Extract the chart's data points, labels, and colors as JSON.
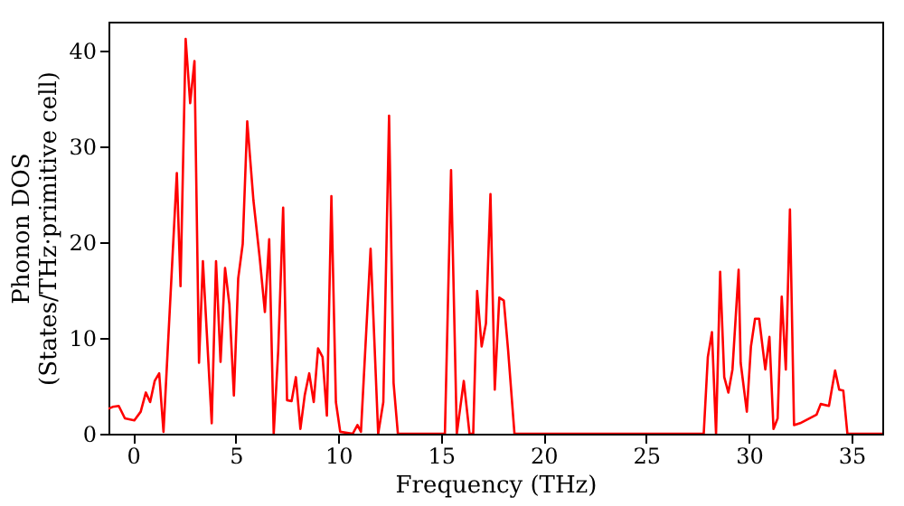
{
  "chart_data": {
    "type": "line",
    "xlabel": "Frequency (THz)",
    "ylabel": "Phonon DOS\n(States/THz·primitive cell)",
    "xlim": [
      -1.2,
      36.5
    ],
    "ylim": [
      0,
      43
    ],
    "xticks": [
      0,
      5,
      10,
      15,
      20,
      25,
      30,
      35
    ],
    "yticks": [
      0,
      10,
      20,
      30,
      40
    ],
    "grid": false,
    "marker": "none",
    "line_style": "solid",
    "series": [
      {
        "color": "#ff0000",
        "x": [
          -1.2,
          -1.0,
          -0.7,
          -0.4,
          0.06,
          0.37,
          0.62,
          0.83,
          1.05,
          1.27,
          1.48,
          2.13,
          2.31,
          2.56,
          2.78,
          2.99,
          3.21,
          3.4,
          3.83,
          4.04,
          4.26,
          4.48,
          4.69,
          4.91,
          5.12,
          5.34,
          5.56,
          5.86,
          6.17,
          6.42,
          6.63,
          6.85,
          7.07,
          7.31,
          7.5,
          7.72,
          7.93,
          8.15,
          8.36,
          8.58,
          8.8,
          9.01,
          9.23,
          9.44,
          9.66,
          9.88,
          10.09,
          10.7,
          10.93,
          11.1,
          11.57,
          11.94,
          12.19,
          12.47,
          12.69,
          12.9,
          15.19,
          15.49,
          15.77,
          16.11,
          16.39,
          16.57,
          16.76,
          16.98,
          17.19,
          17.41,
          17.62,
          17.84,
          18.06,
          18.27,
          18.58,
          27.8,
          28.0,
          28.2,
          28.4,
          28.6,
          28.8,
          29.0,
          29.2,
          29.5,
          29.6,
          29.9,
          30.1,
          30.3,
          30.5,
          30.8,
          31.0,
          31.2,
          31.4,
          31.6,
          31.8,
          32.0,
          32.2,
          32.5,
          33.3,
          33.5,
          33.9,
          34.2,
          34.4,
          34.6,
          34.8,
          36.5
        ],
        "values": [
          2.6,
          2.8,
          2.9,
          1.6,
          1.4,
          2.3,
          4.3,
          3.3,
          5.5,
          6.3,
          0.2,
          27.2,
          15.4,
          41.2,
          34.5,
          38.9,
          7.4,
          18,
          1.1,
          18,
          7.5,
          17.3,
          13.5,
          4,
          16.2,
          19.8,
          32.6,
          24.4,
          18.3,
          12.7,
          20.3,
          0,
          8.7,
          23.6,
          3.5,
          3.4,
          5.9,
          0.5,
          4,
          6.3,
          3.3,
          8.9,
          8,
          1.9,
          24.8,
          3.3,
          0.2,
          0,
          0.9,
          0.2,
          19.3,
          0,
          3.3,
          33.2,
          5.3,
          0,
          0,
          27.5,
          0,
          5.5,
          0,
          0,
          14.9,
          9.1,
          11.5,
          25,
          4.6,
          14.2,
          13.9,
          8.7,
          0,
          0,
          8,
          10.6,
          0,
          16.9,
          5.9,
          4.3,
          6.7,
          17.1,
          7.4,
          2.3,
          9.1,
          12,
          12,
          6.7,
          10.1,
          0.5,
          1.6,
          14.3,
          6.7,
          23.4,
          0.9,
          1.1,
          2,
          3.1,
          2.9,
          6.6,
          4.6,
          4.5,
          0,
          0
        ]
      }
    ]
  }
}
